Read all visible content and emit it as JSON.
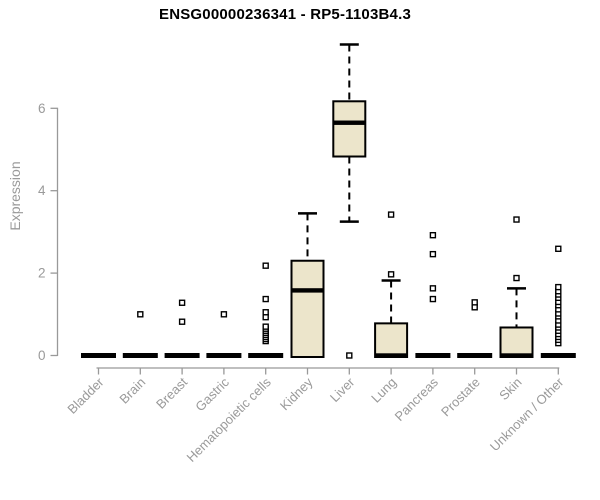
{
  "title": "ENSG00000236341 - RP5-1103B4.3",
  "chart_data": {
    "type": "boxplot",
    "title": "ENSG00000236341 - RP5-1103B4.3",
    "xlabel": "",
    "ylabel": "Expression",
    "yticks": [
      0,
      2,
      4,
      6
    ],
    "ylim": [
      0,
      7.8
    ],
    "grid": false,
    "legend": false,
    "categories": [
      "Bladder",
      "Brain",
      "Breast",
      "Gastric",
      "Hematopoietic cells",
      "Kidney",
      "Liver",
      "Lung",
      "Pancreas",
      "Prostate",
      "Skin",
      "Unknown / Other"
    ],
    "boxes": [
      {
        "category": "Bladder",
        "whisker_low": 0,
        "q1": 0,
        "median": 0,
        "q3": 0,
        "whisker_high": 0,
        "outliers": []
      },
      {
        "category": "Brain",
        "whisker_low": 0,
        "q1": 0,
        "median": 0,
        "q3": 0,
        "whisker_high": 0,
        "outliers": [
          1.0
        ]
      },
      {
        "category": "Breast",
        "whisker_low": 0,
        "q1": 0,
        "median": 0,
        "q3": 0,
        "whisker_high": 0,
        "outliers": [
          0.82,
          1.28
        ]
      },
      {
        "category": "Gastric",
        "whisker_low": 0,
        "q1": 0,
        "median": 0,
        "q3": 0,
        "whisker_high": 0,
        "outliers": [
          1.0
        ]
      },
      {
        "category": "Hematopoietic cells",
        "whisker_low": 0,
        "q1": 0,
        "median": 0,
        "q3": 0,
        "whisker_high": 0,
        "outliers": [
          0.35,
          0.4,
          0.45,
          0.5,
          0.55,
          0.6,
          0.65,
          0.7,
          0.93,
          1.05,
          1.37,
          2.18
        ]
      },
      {
        "category": "Kidney",
        "whisker_low": 0,
        "q1": 0,
        "median": 1.58,
        "q3": 2.3,
        "whisker_high": 3.45,
        "outliers": []
      },
      {
        "category": "Liver",
        "whisker_low": 3.25,
        "q1": 4.83,
        "median": 5.65,
        "q3": 6.17,
        "whisker_high": 7.55,
        "outliers": [
          0
        ]
      },
      {
        "category": "Lung",
        "whisker_low": 0,
        "q1": 0,
        "median": 0,
        "q3": 0.78,
        "whisker_high": 1.82,
        "outliers": [
          1.97,
          3.42
        ]
      },
      {
        "category": "Pancreas",
        "whisker_low": 0,
        "q1": 0,
        "median": 0,
        "q3": 0,
        "whisker_high": 0,
        "outliers": [
          1.37,
          1.63,
          2.46,
          2.92
        ]
      },
      {
        "category": "Prostate",
        "whisker_low": 0,
        "q1": 0,
        "median": 0,
        "q3": 0,
        "whisker_high": 0,
        "outliers": [
          1.17,
          1.29
        ]
      },
      {
        "category": "Skin",
        "whisker_low": 0,
        "q1": 0,
        "median": 0,
        "q3": 0.68,
        "whisker_high": 1.63,
        "outliers": [
          1.88,
          3.3
        ]
      },
      {
        "category": "Unknown / Other",
        "whisker_low": 0,
        "q1": 0,
        "median": 0,
        "q3": 0,
        "whisker_high": 0,
        "outliers": [
          0.3,
          0.38,
          0.45,
          0.52,
          0.6,
          0.68,
          0.75,
          0.85,
          0.95,
          1.02,
          1.12,
          1.22,
          1.3,
          1.4,
          1.48,
          1.56,
          1.66,
          2.59
        ]
      }
    ],
    "style": {
      "box_fill": "#ECE5CB",
      "box_border": "#000000",
      "median_color": "#000000",
      "whisker_color": "#000000",
      "outlier_color": "#000000",
      "axis_color": "#999999",
      "label_color": "#9a9a9a",
      "title_color": "#000000",
      "background": "#FFFFFF"
    }
  }
}
